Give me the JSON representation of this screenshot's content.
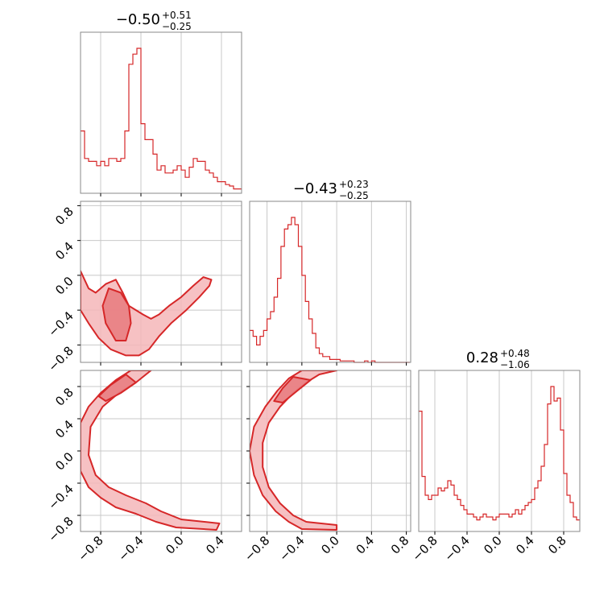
{
  "colors": {
    "accent": "#d62728",
    "fill_light": "#f4b6b8",
    "fill_mid": "#e97e82",
    "grid": "#c8c8c8",
    "frame": "#888888"
  },
  "titles": [
    {
      "main": "−0.50",
      "sup": "+0.51",
      "sub": "−0.25"
    },
    {
      "main": "−0.43",
      "sup": "+0.23",
      "sub": "−0.25"
    },
    {
      "main": "0.28",
      "sup": "+0.48",
      "sub": "−1.06"
    }
  ],
  "chart_data": {
    "type": "corner",
    "title": "",
    "parameter_names": [
      "",
      "",
      ""
    ],
    "x_ticks": [
      "−0.8",
      "−0.4",
      "0.0",
      "0.4",
      "0.8"
    ],
    "y_ticks": [
      "−0.8",
      "−0.4",
      "0.0",
      "0.4",
      "0.8"
    ],
    "ranges": [
      [
        -1.0,
        0.6
      ],
      [
        -1.0,
        0.85
      ],
      [
        -1.0,
        1.0
      ]
    ],
    "grid": true,
    "histograms": [
      {
        "param": 0,
        "x_start": -1.0,
        "bin_width": 0.04,
        "values": [
          0.43,
          0.24,
          0.22,
          0.22,
          0.19,
          0.22,
          0.19,
          0.24,
          0.24,
          0.22,
          0.24,
          0.43,
          0.89,
          0.96,
          1.0,
          0.48,
          0.37,
          0.37,
          0.27,
          0.16,
          0.19,
          0.14,
          0.14,
          0.16,
          0.19,
          0.16,
          0.11,
          0.18,
          0.24,
          0.22,
          0.22,
          0.16,
          0.14,
          0.11,
          0.08,
          0.08,
          0.06,
          0.05,
          0.03,
          0.03
        ]
      },
      {
        "param": 1,
        "x_start": -1.0,
        "bin_width": 0.04,
        "values": [
          0.22,
          0.18,
          0.12,
          0.18,
          0.22,
          0.3,
          0.35,
          0.45,
          0.58,
          0.8,
          0.92,
          0.95,
          1.0,
          0.95,
          0.8,
          0.6,
          0.42,
          0.3,
          0.2,
          0.1,
          0.06,
          0.04,
          0.04,
          0.02,
          0.02,
          0.02,
          0.01,
          0.01,
          0.01,
          0.01,
          0.0,
          0.0,
          0.0,
          0.01,
          0.0,
          0.01,
          0.0,
          0.0,
          0.0,
          0.0,
          0.0,
          0.0,
          0.0,
          0.0,
          0.0,
          0.0
        ]
      },
      {
        "param": 2,
        "x_start": -1.0,
        "bin_width": 0.04,
        "values": [
          0.83,
          0.38,
          0.25,
          0.22,
          0.25,
          0.25,
          0.3,
          0.28,
          0.3,
          0.35,
          0.32,
          0.25,
          0.22,
          0.18,
          0.15,
          0.12,
          0.12,
          0.1,
          0.08,
          0.1,
          0.12,
          0.1,
          0.1,
          0.08,
          0.1,
          0.12,
          0.12,
          0.12,
          0.1,
          0.12,
          0.15,
          0.12,
          0.15,
          0.18,
          0.2,
          0.22,
          0.3,
          0.35,
          0.45,
          0.6,
          0.88,
          1.0,
          0.9,
          0.92,
          0.7,
          0.4,
          0.25,
          0.2,
          0.1,
          0.08
        ]
      }
    ],
    "joint_contours": [
      {
        "x_param": 0,
        "y_param": 1,
        "outer": [
          [
            -1.0,
            0.05
          ],
          [
            -0.92,
            -0.15
          ],
          [
            -0.85,
            -0.2
          ],
          [
            -0.75,
            -0.1
          ],
          [
            -0.65,
            -0.05
          ],
          [
            -0.58,
            -0.2
          ],
          [
            -0.52,
            -0.35
          ],
          [
            -0.45,
            -0.4
          ],
          [
            -0.38,
            -0.45
          ],
          [
            -0.3,
            -0.5
          ],
          [
            -0.22,
            -0.45
          ],
          [
            -0.12,
            -0.35
          ],
          [
            0.0,
            -0.25
          ],
          [
            0.12,
            -0.12
          ],
          [
            0.22,
            -0.02
          ],
          [
            0.3,
            -0.05
          ],
          [
            0.28,
            -0.12
          ],
          [
            0.18,
            -0.25
          ],
          [
            0.05,
            -0.4
          ],
          [
            -0.1,
            -0.55
          ],
          [
            -0.22,
            -0.7
          ],
          [
            -0.32,
            -0.85
          ],
          [
            -0.42,
            -0.92
          ],
          [
            -0.55,
            -0.92
          ],
          [
            -0.7,
            -0.85
          ],
          [
            -0.82,
            -0.72
          ],
          [
            -0.92,
            -0.55
          ],
          [
            -1.0,
            -0.4
          ]
        ],
        "inner": [
          [
            -0.72,
            -0.15
          ],
          [
            -0.6,
            -0.2
          ],
          [
            -0.52,
            -0.35
          ],
          [
            -0.5,
            -0.55
          ],
          [
            -0.55,
            -0.75
          ],
          [
            -0.65,
            -0.75
          ],
          [
            -0.75,
            -0.55
          ],
          [
            -0.78,
            -0.35
          ]
        ]
      },
      {
        "x_param": 0,
        "y_param": 2,
        "outer": [
          [
            -0.5,
            1.0
          ],
          [
            -0.65,
            0.88
          ],
          [
            -0.8,
            0.72
          ],
          [
            -0.92,
            0.55
          ],
          [
            -1.0,
            0.35
          ],
          [
            -1.0,
            -0.25
          ],
          [
            -0.92,
            -0.45
          ],
          [
            -0.8,
            -0.58
          ],
          [
            -0.65,
            -0.7
          ],
          [
            -0.45,
            -0.78
          ],
          [
            -0.25,
            -0.88
          ],
          [
            -0.05,
            -0.95
          ],
          [
            0.35,
            -0.98
          ],
          [
            0.38,
            -0.9
          ],
          [
            0.0,
            -0.85
          ],
          [
            -0.2,
            -0.75
          ],
          [
            -0.35,
            -0.65
          ],
          [
            -0.55,
            -0.55
          ],
          [
            -0.72,
            -0.45
          ],
          [
            -0.85,
            -0.3
          ],
          [
            -0.92,
            -0.05
          ],
          [
            -0.9,
            0.3
          ],
          [
            -0.78,
            0.55
          ],
          [
            -0.62,
            0.72
          ],
          [
            -0.45,
            0.85
          ],
          [
            -0.3,
            1.0
          ]
        ],
        "inner": [
          [
            -0.55,
            0.95
          ],
          [
            -0.7,
            0.82
          ],
          [
            -0.82,
            0.68
          ],
          [
            -0.75,
            0.62
          ],
          [
            -0.6,
            0.72
          ],
          [
            -0.45,
            0.85
          ]
        ]
      },
      {
        "x_param": 1,
        "y_param": 2,
        "outer": [
          [
            -0.4,
            1.0
          ],
          [
            -0.55,
            0.9
          ],
          [
            -0.68,
            0.75
          ],
          [
            -0.82,
            0.55
          ],
          [
            -0.95,
            0.3
          ],
          [
            -1.0,
            0.0
          ],
          [
            -0.95,
            -0.3
          ],
          [
            -0.85,
            -0.55
          ],
          [
            -0.7,
            -0.75
          ],
          [
            -0.55,
            -0.88
          ],
          [
            -0.4,
            -0.97
          ],
          [
            0.0,
            -0.98
          ],
          [
            0.0,
            -0.92
          ],
          [
            -0.35,
            -0.88
          ],
          [
            -0.5,
            -0.8
          ],
          [
            -0.65,
            -0.65
          ],
          [
            -0.78,
            -0.45
          ],
          [
            -0.85,
            -0.2
          ],
          [
            -0.85,
            0.1
          ],
          [
            -0.78,
            0.35
          ],
          [
            -0.65,
            0.55
          ],
          [
            -0.5,
            0.72
          ],
          [
            -0.35,
            0.85
          ],
          [
            -0.2,
            0.95
          ],
          [
            0.0,
            1.0
          ]
        ],
        "inner": [
          [
            -0.5,
            0.92
          ],
          [
            -0.62,
            0.78
          ],
          [
            -0.72,
            0.62
          ],
          [
            -0.62,
            0.6
          ],
          [
            -0.45,
            0.75
          ],
          [
            -0.3,
            0.88
          ]
        ]
      }
    ]
  }
}
